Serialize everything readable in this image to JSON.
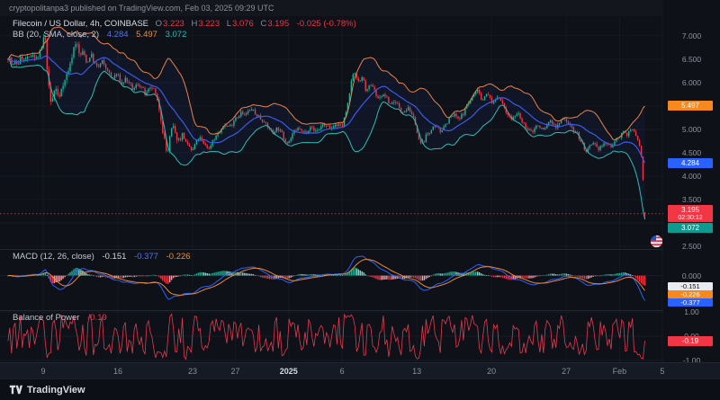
{
  "publish_bar": {
    "text": "cryptopolitanpa3 published on TradingView.com, Feb 03, 2025 09:29 UTC"
  },
  "legends": {
    "symbol": {
      "title": "Filecoin / US Dollar, 4h, COINBASE",
      "o_label": "O",
      "o_value": "3.223",
      "h_label": "H",
      "h_value": "3.223",
      "l_label": "L",
      "l_value": "3.076",
      "c_label": "C",
      "c_value": "3.195",
      "change": "-0.025 (-0.78%)"
    },
    "bb": {
      "title": "BB (20, SMA, close, 2)",
      "basis": "4.284",
      "upper": "5.497",
      "lower": "3.072"
    },
    "macd": {
      "title": "MACD (12, 26, close)",
      "hist": "-0.151",
      "macd": "-0.377",
      "signal": "-0.226"
    },
    "bop": {
      "title": "Balance of Power",
      "value": "-0.19"
    }
  },
  "scale_labels": {
    "bb_upper": "5.497",
    "bb_basis": "4.284",
    "last_price": "3.195",
    "countdown": "02:30:12",
    "bb_lower": "3.072",
    "macd_hist": "-0.151",
    "macd_signal": "-0.226",
    "macd_line": "-0.377",
    "bop": "-0.19"
  },
  "footer": {
    "brand": "TradingView"
  },
  "icons": {
    "stickers": [
      "circle-flag-sticker",
      "circle-flag-sticker"
    ],
    "brand_logo": "tradingview-logo"
  },
  "colors": {
    "up": "#1cb398",
    "down": "#f23645",
    "bb_upper": "#e8824d",
    "bb_basis": "#3b5be9",
    "bb_lower": "#2fbdb4",
    "bb_fill": "rgba(59,91,233,0.08)",
    "macd_line": "#2962ff",
    "macd_signal": "#e8883a",
    "hist_pos_rise": "#22ab94",
    "hist_pos_fall": "#94d7cb",
    "hist_neg_fall": "#f23645",
    "hist_neg_rise": "#f5a0a8",
    "bop_line": "#e23b4f",
    "grid": "#1a2030",
    "separator": "#212735",
    "label_orange_bg": "#f7881e",
    "label_blue_bg": "#2962ff",
    "label_teal_bg": "#10998f",
    "label_red_bg": "#f23645",
    "label_white_bg": "#e9ebf0"
  },
  "chart_data": [
    {
      "type": "candlestick",
      "symbol": "Filecoin / US Dollar",
      "interval": "4h",
      "exchange": "COINBASE",
      "last": {
        "open": 3.223,
        "high": 3.223,
        "low": 3.076,
        "close": 3.195,
        "change": -0.025,
        "change_pct": -0.78
      },
      "indicator": "BB (20, SMA, close, 2)",
      "bb_last": {
        "upper": 5.497,
        "basis": 4.284,
        "lower": 3.072
      },
      "ylim": [
        2.44,
        7.42
      ],
      "y_ticks": [
        {
          "v": 7.0,
          "t": "7.000"
        },
        {
          "v": 6.5,
          "t": "6.500"
        },
        {
          "v": 6.0,
          "t": "6.000"
        },
        {
          "v": 5.0,
          "t": "5.000"
        },
        {
          "v": 4.5,
          "t": "4.500"
        },
        {
          "v": 4.0,
          "t": "4.000"
        },
        {
          "v": 3.5,
          "t": "3.500"
        },
        {
          "v": 2.5,
          "t": "2.500"
        }
      ],
      "x_day_zero": "2024-12-08",
      "x_ticks": [
        {
          "label": "9",
          "day": 1
        },
        {
          "label": "16",
          "day": 8
        },
        {
          "label": "23",
          "day": 15
        },
        {
          "label": "27",
          "day": 19
        },
        {
          "label": "2025",
          "day": 24,
          "bold": true
        },
        {
          "label": "6",
          "day": 29
        },
        {
          "label": "13",
          "day": 36
        },
        {
          "label": "20",
          "day": 43
        },
        {
          "label": "27",
          "day": 50
        },
        {
          "label": "Feb",
          "day": 55
        },
        {
          "label": "5",
          "day": 59
        }
      ],
      "bars": 359,
      "day_start": -2.3,
      "close_keypoints": [
        [
          -2.3,
          6.55
        ],
        [
          -1.9,
          6.35
        ],
        [
          -1.5,
          6.42
        ],
        [
          -1.0,
          6.55
        ],
        [
          -0.5,
          6.45
        ],
        [
          0,
          6.62
        ],
        [
          0.5,
          6.52
        ],
        [
          0.9,
          6.78
        ],
        [
          1.15,
          7.0
        ],
        [
          1.3,
          6.55
        ],
        [
          1.5,
          5.95
        ],
        [
          1.7,
          5.58
        ],
        [
          2.1,
          5.88
        ],
        [
          2.5,
          5.65
        ],
        [
          2.9,
          6.02
        ],
        [
          3.3,
          6.22
        ],
        [
          3.7,
          6.55
        ],
        [
          4.1,
          6.92
        ],
        [
          4.35,
          6.58
        ],
        [
          4.7,
          6.68
        ],
        [
          5.1,
          6.42
        ],
        [
          5.5,
          6.58
        ],
        [
          6,
          6.32
        ],
        [
          6.5,
          6.45
        ],
        [
          7,
          6.25
        ],
        [
          7.5,
          6.08
        ],
        [
          7.9,
          6.22
        ],
        [
          8.3,
          5.95
        ],
        [
          8.8,
          6.08
        ],
        [
          9.4,
          5.86
        ],
        [
          10,
          5.96
        ],
        [
          10.6,
          5.76
        ],
        [
          11.2,
          5.9
        ],
        [
          11.7,
          5.62
        ],
        [
          12,
          5.28
        ],
        [
          12.3,
          4.88
        ],
        [
          12.6,
          4.4
        ],
        [
          12.9,
          4.86
        ],
        [
          13.2,
          5.06
        ],
        [
          13.6,
          4.76
        ],
        [
          14,
          4.9
        ],
        [
          14.5,
          4.64
        ],
        [
          15,
          4.56
        ],
        [
          15.5,
          4.82
        ],
        [
          16,
          4.7
        ],
        [
          16.5,
          4.6
        ],
        [
          17,
          4.8
        ],
        [
          17.5,
          4.92
        ],
        [
          18,
          5.12
        ],
        [
          18.5,
          5.04
        ],
        [
          19,
          5.24
        ],
        [
          19.5,
          5.36
        ],
        [
          20,
          5.3
        ],
        [
          20.5,
          5.44
        ],
        [
          21,
          5.32
        ],
        [
          21.5,
          5.2
        ],
        [
          22,
          5.06
        ],
        [
          22.5,
          4.94
        ],
        [
          23,
          5.02
        ],
        [
          23.5,
          4.84
        ],
        [
          23.9,
          4.72
        ],
        [
          24.4,
          4.9
        ],
        [
          25,
          5.02
        ],
        [
          25.5,
          4.92
        ],
        [
          26,
          5.04
        ],
        [
          26.5,
          4.96
        ],
        [
          27.2,
          5.1
        ],
        [
          27.8,
          5.0
        ],
        [
          28.4,
          5.12
        ],
        [
          29,
          5.04
        ],
        [
          29.4,
          5.38
        ],
        [
          29.8,
          5.92
        ],
        [
          30.1,
          6.3
        ],
        [
          30.5,
          5.98
        ],
        [
          30.9,
          6.12
        ],
        [
          31.3,
          5.82
        ],
        [
          31.8,
          5.96
        ],
        [
          32.3,
          5.66
        ],
        [
          32.9,
          5.76
        ],
        [
          33.5,
          5.52
        ],
        [
          34,
          5.62
        ],
        [
          34.6,
          5.36
        ],
        [
          35.2,
          5.46
        ],
        [
          35.8,
          5.2
        ],
        [
          36.3,
          4.64
        ],
        [
          36.7,
          4.78
        ],
        [
          37.1,
          4.94
        ],
        [
          37.6,
          5.06
        ],
        [
          38.2,
          4.96
        ],
        [
          38.8,
          5.16
        ],
        [
          39.4,
          5.3
        ],
        [
          40,
          5.22
        ],
        [
          40.6,
          5.46
        ],
        [
          41.2,
          5.68
        ],
        [
          41.7,
          5.88
        ],
        [
          42.1,
          5.62
        ],
        [
          42.6,
          5.76
        ],
        [
          43.1,
          5.58
        ],
        [
          43.7,
          5.7
        ],
        [
          44.3,
          5.4
        ],
        [
          44.9,
          5.22
        ],
        [
          45.5,
          5.32
        ],
        [
          46.1,
          5.08
        ],
        [
          46.7,
          4.92
        ],
        [
          47.3,
          5.1
        ],
        [
          47.9,
          4.98
        ],
        [
          48.5,
          5.18
        ],
        [
          49.1,
          5.06
        ],
        [
          49.7,
          5.22
        ],
        [
          50.3,
          5.12
        ],
        [
          50.9,
          4.95
        ],
        [
          51.4,
          4.72
        ],
        [
          51.9,
          4.52
        ],
        [
          52.4,
          4.68
        ],
        [
          53,
          4.58
        ],
        [
          53.6,
          4.72
        ],
        [
          54.2,
          4.62
        ],
        [
          54.8,
          4.82
        ],
        [
          55.3,
          4.95
        ],
        [
          55.8,
          4.88
        ],
        [
          56.2,
          5.02
        ],
        [
          56.6,
          4.85
        ],
        [
          56.9,
          4.62
        ],
        [
          57.05,
          4.35
        ],
        [
          57.18,
          4.0
        ],
        [
          57.3,
          3.6
        ],
        [
          57.4,
          3.195
        ]
      ]
    },
    {
      "type": "macd",
      "params_label": "12, 26, close",
      "last": {
        "hist": -0.151,
        "macd": -0.377,
        "signal": -0.226
      },
      "ylim": [
        -0.52,
        0.4
      ],
      "y_ticks": [
        {
          "v": 0,
          "t": "0.000"
        }
      ]
    },
    {
      "type": "line",
      "title": "Balance of Power",
      "last": -0.19,
      "ylim": [
        -1.08,
        1.08
      ],
      "y_ticks": [
        {
          "v": 1,
          "t": "1.00"
        },
        {
          "v": 0,
          "t": "0.00"
        },
        {
          "v": -1,
          "t": "-1.00"
        }
      ]
    }
  ]
}
